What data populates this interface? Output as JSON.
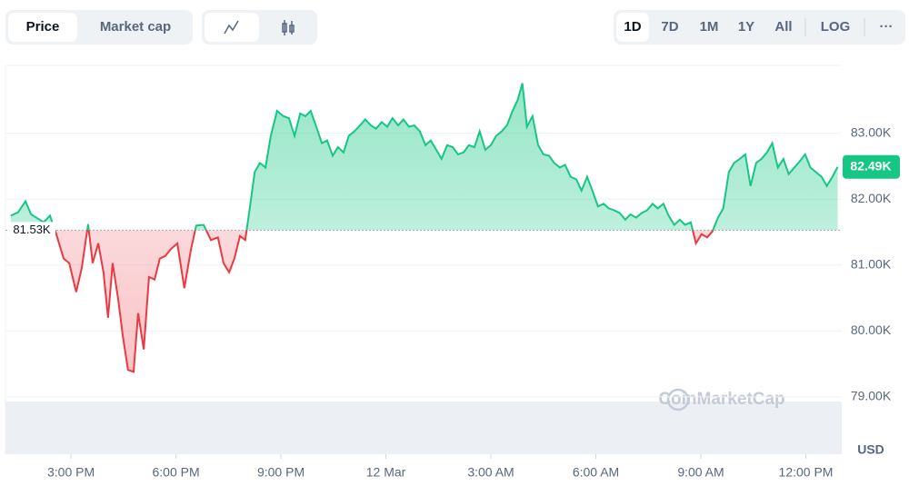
{
  "controls": {
    "metric_tabs": [
      "Price",
      "Market cap"
    ],
    "ranges": [
      "1D",
      "7D",
      "1M",
      "1Y",
      "All",
      "LOG"
    ],
    "more": "···"
  },
  "watermark": "CoinMarketCap",
  "chart_data": {
    "type": "line",
    "currency": "USD",
    "x": [
      13.28,
      13.49,
      13.7,
      13.86,
      14.01,
      14.22,
      14.4,
      14.58,
      14.79,
      14.95,
      15.15,
      15.31,
      15.49,
      15.62,
      15.78,
      15.93,
      16.06,
      16.19,
      16.35,
      16.48,
      16.63,
      16.79,
      16.92,
      17.08,
      17.23,
      17.39,
      17.54,
      17.7,
      17.85,
      18.04,
      18.24,
      18.43,
      18.58,
      18.79,
      19.0,
      19.2,
      19.36,
      19.52,
      19.67,
      19.83,
      19.98,
      20.11,
      20.25,
      20.4,
      20.56,
      20.71,
      20.89,
      21.07,
      21.23,
      21.39,
      21.55,
      21.7,
      21.85,
      22.01,
      22.17,
      22.32,
      22.48,
      22.63,
      22.79,
      22.94,
      23.1,
      23.26,
      23.41,
      23.57,
      23.72,
      23.88,
      24.04,
      24.19,
      24.35,
      24.5,
      24.66,
      24.81,
      24.97,
      25.13,
      25.28,
      25.44,
      25.59,
      25.75,
      25.91,
      26.06,
      26.22,
      26.37,
      26.53,
      26.68,
      26.84,
      27.0,
      27.15,
      27.31,
      27.46,
      27.62,
      27.77,
      27.9,
      28.03,
      28.19,
      28.35,
      28.5,
      28.66,
      28.81,
      28.97,
      29.12,
      29.28,
      29.44,
      29.59,
      29.75,
      29.9,
      30.06,
      30.22,
      30.37,
      30.53,
      30.68,
      30.84,
      30.99,
      31.15,
      31.31,
      31.46,
      31.62,
      31.77,
      31.93,
      32.08,
      32.24,
      32.4,
      32.55,
      32.71,
      32.86,
      33.02,
      33.18,
      33.33,
      33.49,
      33.64,
      33.8,
      33.95,
      34.11,
      34.27,
      34.42,
      34.58,
      34.73,
      34.89,
      35.04,
      35.2,
      35.36,
      35.51,
      35.67,
      35.82,
      35.98,
      36.13,
      36.29,
      36.45,
      36.6,
      36.76,
      36.91
    ],
    "values": [
      81750,
      81800,
      81970,
      81770,
      81720,
      81650,
      81750,
      81470,
      81100,
      81030,
      80590,
      80960,
      81620,
      81030,
      81330,
      80890,
      80200,
      81030,
      80480,
      79930,
      79410,
      79380,
      80270,
      79720,
      80820,
      80780,
      81100,
      81140,
      81240,
      81330,
      80650,
      81240,
      81600,
      81610,
      81380,
      81420,
      81030,
      80890,
      81100,
      81440,
      81380,
      81860,
      82410,
      82550,
      82480,
      82960,
      83340,
      83260,
      83230,
      82960,
      83300,
      83260,
      83340,
      83100,
      82850,
      82890,
      82660,
      82790,
      82710,
      82960,
      83030,
      83120,
      83210,
      83120,
      83070,
      83170,
      83100,
      83230,
      83120,
      83210,
      83100,
      83120,
      83030,
      82820,
      82890,
      82750,
      82610,
      82820,
      82790,
      82680,
      82710,
      82820,
      82790,
      83030,
      82750,
      82820,
      82960,
      83030,
      83120,
      83340,
      83510,
      83760,
      83100,
      83260,
      82820,
      82680,
      82660,
      82550,
      82480,
      82520,
      82340,
      82300,
      82130,
      82340,
      82130,
      81890,
      81930,
      81860,
      81830,
      81790,
      81690,
      81770,
      81720,
      81790,
      81830,
      81930,
      81860,
      81930,
      81750,
      81610,
      81690,
      81610,
      81650,
      81330,
      81470,
      81420,
      81510,
      81720,
      81860,
      82410,
      82550,
      82610,
      82680,
      82200,
      82550,
      82610,
      82710,
      82850,
      82480,
      82610,
      82380,
      82480,
      82570,
      82680,
      82480,
      82410,
      82340,
      82200,
      82340,
      82490
    ],
    "value_labels": [
      null,
      null,
      null,
      null,
      null,
      null,
      null,
      null,
      null,
      null,
      null,
      null,
      null,
      null,
      null,
      null,
      null,
      null,
      null,
      null,
      null,
      null,
      null,
      null,
      null,
      null,
      null,
      null,
      null,
      null,
      null,
      null,
      null,
      null,
      null,
      null,
      null,
      null,
      null,
      null,
      null,
      null,
      null,
      null,
      null,
      null,
      null,
      null,
      null,
      null,
      null,
      null,
      null,
      null,
      null,
      null,
      null,
      null,
      null,
      null,
      null,
      null,
      null,
      null,
      null,
      null,
      null,
      null,
      null,
      null,
      null,
      null,
      null,
      null,
      null,
      null,
      null,
      null,
      null,
      null,
      null,
      null,
      null,
      null,
      null,
      null,
      null,
      null,
      null,
      null,
      null,
      null,
      null,
      null,
      null,
      null,
      null,
      null,
      null,
      null,
      null,
      null,
      null,
      null,
      null,
      null,
      null,
      null,
      null,
      null,
      null,
      null,
      null,
      null,
      null,
      null,
      null,
      null,
      null,
      null,
      null,
      null,
      null,
      null,
      null,
      null,
      null,
      null,
      null,
      null,
      null,
      null,
      null,
      null,
      null,
      null,
      null,
      null,
      null,
      null,
      null,
      null,
      null,
      null,
      null,
      null,
      null,
      null,
      null,
      "82.49K"
    ],
    "baseline": {
      "value": 81530,
      "label": "81.53K"
    },
    "up_color": "#16c784",
    "down_color": "#ea3943",
    "xlim": [
      13.18,
      37.0
    ],
    "xticks": [
      {
        "value": 15,
        "label": "3:00 PM"
      },
      {
        "value": 18,
        "label": "6:00 PM"
      },
      {
        "value": 21,
        "label": "9:00 PM"
      },
      {
        "value": 24,
        "label": "12 Mar"
      },
      {
        "value": 27,
        "label": "3:00 AM"
      },
      {
        "value": 30,
        "label": "6:00 AM"
      },
      {
        "value": 33,
        "label": "9:00 AM"
      },
      {
        "value": 36,
        "label": "12:00 PM"
      }
    ],
    "ylim": [
      78130,
      84030
    ],
    "yticks": [
      {
        "value": 79000,
        "label": "79.00K"
      },
      {
        "value": 80000,
        "label": "80.00K"
      },
      {
        "value": 81000,
        "label": "81.00K"
      },
      {
        "value": 82000,
        "label": "82.00K"
      },
      {
        "value": 83000,
        "label": "83.00K"
      }
    ],
    "grid": true
  }
}
